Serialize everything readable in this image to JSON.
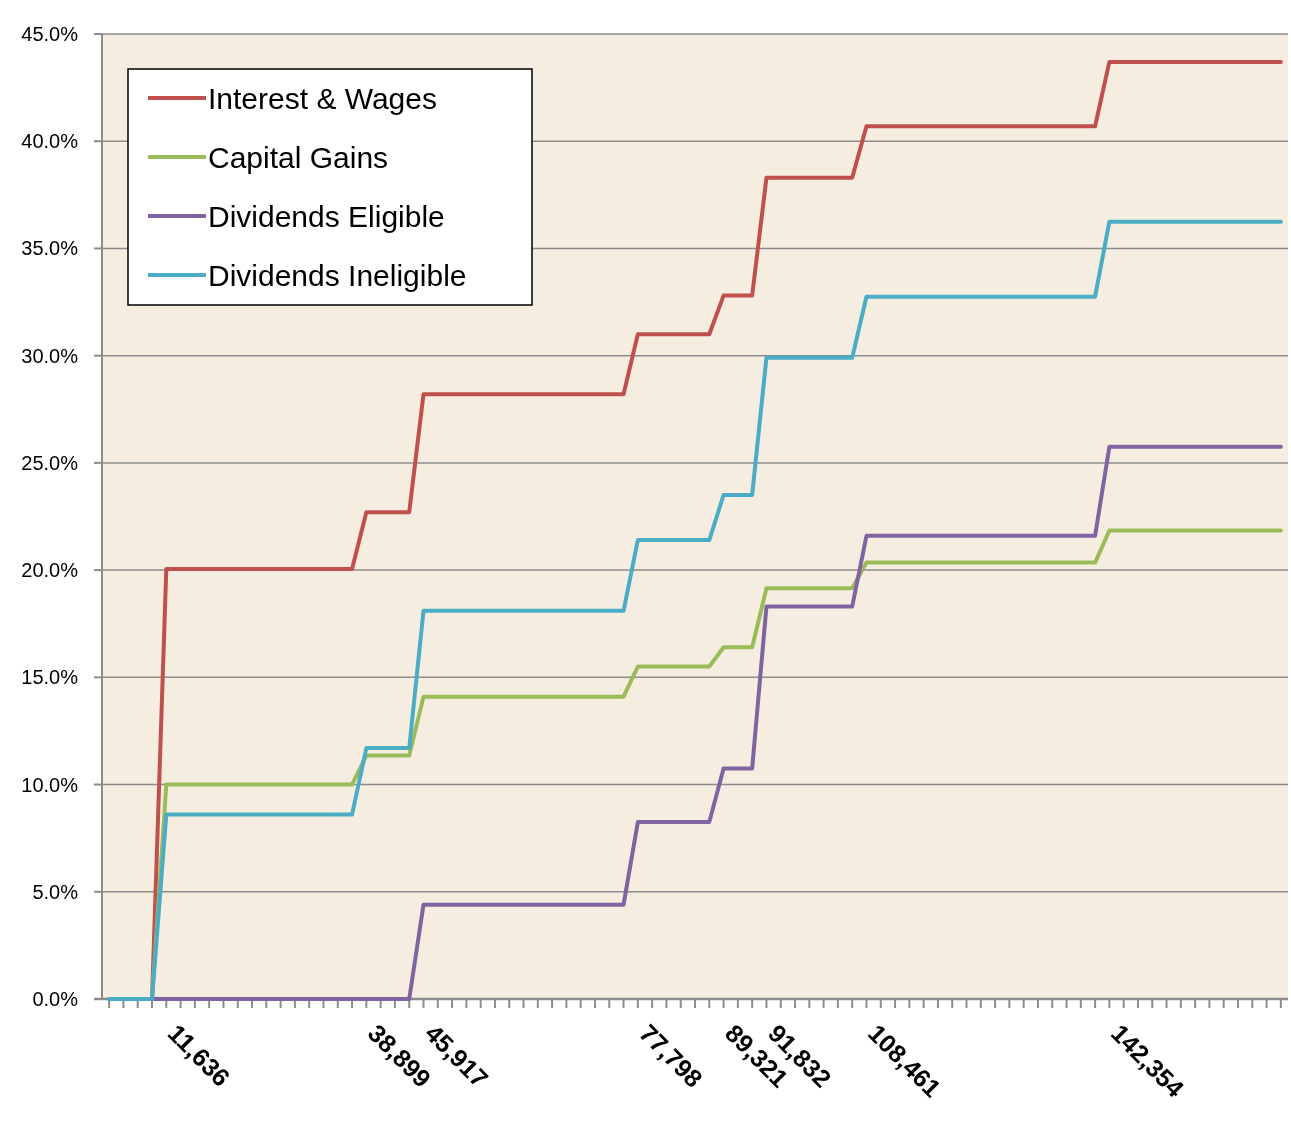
{
  "chart_data": {
    "type": "line",
    "categories": [
      null,
      null,
      null,
      null,
      "11,636",
      null,
      null,
      null,
      null,
      null,
      null,
      null,
      null,
      null,
      null,
      null,
      null,
      null,
      "38,899",
      null,
      null,
      null,
      "45,917",
      null,
      null,
      null,
      null,
      null,
      null,
      null,
      null,
      null,
      null,
      null,
      null,
      null,
      null,
      "77,798",
      null,
      null,
      null,
      null,
      null,
      "89,321",
      null,
      null,
      "91,832",
      null,
      null,
      null,
      null,
      null,
      null,
      "108,461",
      null,
      null,
      null,
      null,
      null,
      null,
      null,
      null,
      null,
      null,
      null,
      null,
      null,
      null,
      null,
      null,
      "142,354",
      null,
      null,
      null,
      null,
      null,
      null,
      null,
      null,
      null,
      null,
      null,
      null
    ],
    "series": [
      {
        "name": "Interest & Wages",
        "color": "#c0504d",
        "values": [
          null,
          null,
          0,
          0,
          20.05,
          20.05,
          20.05,
          20.05,
          20.05,
          20.05,
          20.05,
          20.05,
          20.05,
          20.05,
          20.05,
          20.05,
          20.05,
          20.05,
          22.7,
          22.7,
          22.7,
          22.7,
          28.2,
          28.2,
          28.2,
          28.2,
          28.2,
          28.2,
          28.2,
          28.2,
          28.2,
          28.2,
          28.2,
          28.2,
          28.2,
          28.2,
          28.2,
          31.0,
          31.0,
          31.0,
          31.0,
          31.0,
          31.0,
          32.8,
          32.8,
          32.8,
          38.3,
          38.3,
          38.3,
          38.3,
          38.3,
          38.3,
          38.3,
          40.7,
          40.7,
          40.7,
          40.7,
          40.7,
          40.7,
          40.7,
          40.7,
          40.7,
          40.7,
          40.7,
          40.7,
          40.7,
          40.7,
          40.7,
          40.7,
          40.7,
          43.7,
          43.7,
          43.7,
          43.7,
          43.7,
          43.7,
          43.7,
          43.7,
          43.7,
          43.7,
          43.7,
          43.7,
          43.7
        ]
      },
      {
        "name": "Capital Gains",
        "color": "#9bbb59",
        "values": [
          null,
          null,
          0,
          0,
          10.0,
          10.0,
          10.0,
          10.0,
          10.0,
          10.0,
          10.0,
          10.0,
          10.0,
          10.0,
          10.0,
          10.0,
          10.0,
          10.0,
          11.35,
          11.35,
          11.35,
          11.35,
          14.1,
          14.1,
          14.1,
          14.1,
          14.1,
          14.1,
          14.1,
          14.1,
          14.1,
          14.1,
          14.1,
          14.1,
          14.1,
          14.1,
          14.1,
          15.5,
          15.5,
          15.5,
          15.5,
          15.5,
          15.5,
          16.4,
          16.4,
          16.4,
          19.15,
          19.15,
          19.15,
          19.15,
          19.15,
          19.15,
          19.15,
          20.35,
          20.35,
          20.35,
          20.35,
          20.35,
          20.35,
          20.35,
          20.35,
          20.35,
          20.35,
          20.35,
          20.35,
          20.35,
          20.35,
          20.35,
          20.35,
          20.35,
          21.85,
          21.85,
          21.85,
          21.85,
          21.85,
          21.85,
          21.85,
          21.85,
          21.85,
          21.85,
          21.85,
          21.85,
          21.85
        ]
      },
      {
        "name": "Dividends Eligible",
        "color": "#8064a2",
        "values": [
          0,
          0,
          0,
          0,
          0,
          0,
          0,
          0,
          0,
          0,
          0,
          0,
          0,
          0,
          0,
          0,
          0,
          0,
          0,
          0,
          0,
          0,
          4.4,
          4.4,
          4.4,
          4.4,
          4.4,
          4.4,
          4.4,
          4.4,
          4.4,
          4.4,
          4.4,
          4.4,
          4.4,
          4.4,
          4.4,
          8.25,
          8.25,
          8.25,
          8.25,
          8.25,
          8.25,
          10.75,
          10.75,
          10.75,
          18.3,
          18.3,
          18.3,
          18.3,
          18.3,
          18.3,
          18.3,
          21.6,
          21.6,
          21.6,
          21.6,
          21.6,
          21.6,
          21.6,
          21.6,
          21.6,
          21.6,
          21.6,
          21.6,
          21.6,
          21.6,
          21.6,
          21.6,
          21.6,
          25.75,
          25.75,
          25.75,
          25.75,
          25.75,
          25.75,
          25.75,
          25.75,
          25.75,
          25.75,
          25.75,
          25.75,
          25.75
        ]
      },
      {
        "name": "Dividends Ineligible",
        "color": "#4bacc6",
        "values": [
          0,
          0,
          0,
          0,
          8.6,
          8.6,
          8.6,
          8.6,
          8.6,
          8.6,
          8.6,
          8.6,
          8.6,
          8.6,
          8.6,
          8.6,
          8.6,
          8.6,
          11.7,
          11.7,
          11.7,
          11.7,
          18.1,
          18.1,
          18.1,
          18.1,
          18.1,
          18.1,
          18.1,
          18.1,
          18.1,
          18.1,
          18.1,
          18.1,
          18.1,
          18.1,
          18.1,
          21.4,
          21.4,
          21.4,
          21.4,
          21.4,
          21.4,
          23.5,
          23.5,
          23.5,
          29.9,
          29.9,
          29.9,
          29.9,
          29.9,
          29.9,
          29.9,
          32.75,
          32.75,
          32.75,
          32.75,
          32.75,
          32.75,
          32.75,
          32.75,
          32.75,
          32.75,
          32.75,
          32.75,
          32.75,
          32.75,
          32.75,
          32.75,
          32.75,
          36.25,
          36.25,
          36.25,
          36.25,
          36.25,
          36.25,
          36.25,
          36.25,
          36.25,
          36.25,
          36.25,
          36.25,
          36.25
        ]
      }
    ],
    "ylim": [
      0,
      45
    ],
    "yticks": [
      {
        "value": 0,
        "label": "0.0%"
      },
      {
        "value": 5,
        "label": "5.0%"
      },
      {
        "value": 10,
        "label": "10.0%"
      },
      {
        "value": 15,
        "label": "15.0%"
      },
      {
        "value": 20,
        "label": "20.0%"
      },
      {
        "value": 25,
        "label": "25.0%"
      },
      {
        "value": 30,
        "label": "30.0%"
      },
      {
        "value": 35,
        "label": "35.0%"
      },
      {
        "value": 40,
        "label": "40.0%"
      },
      {
        "value": 45,
        "label": "45.0%"
      }
    ],
    "grid": "y",
    "legend": "top left",
    "marker": "none",
    "line_style": "solid"
  }
}
